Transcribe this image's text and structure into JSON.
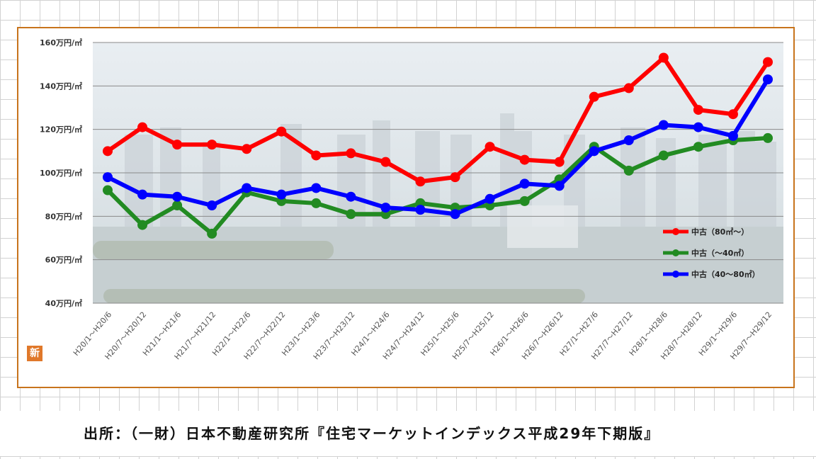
{
  "chart_data": {
    "type": "line",
    "ylim": [
      40,
      160
    ],
    "y_ticks": [
      "40万円/㎡",
      "60万円/㎡",
      "80万円/㎡",
      "100万円/㎡",
      "120万円/㎡",
      "140万円/㎡",
      "160万円/㎡"
    ],
    "categories": [
      "H20/1～H20/6",
      "H20/7～H20/12",
      "H21/1～H21/6",
      "H21/7～H21/12",
      "H22/1～H22/6",
      "H22/7～H22/12",
      "H23/1～H23/6",
      "H23/7～H23/12",
      "H24/1～H24/6",
      "H24/7～H24/12",
      "H25/1～H25/6",
      "H25/7～H25/12",
      "H26/1～H26/6",
      "H26/7～H26/12",
      "H27/1～H27/6",
      "H27/7～H27/12",
      "H28/1～H28/6",
      "H28/7～H28/12",
      "H29/1～H29/6",
      "H29/7～H29/12"
    ],
    "series": [
      {
        "name": "中古（80㎡～）",
        "color": "#ff0000",
        "values": [
          110,
          121,
          113,
          113,
          111,
          119,
          108,
          109,
          105,
          96,
          98,
          112,
          106,
          105,
          135,
          139,
          153,
          129,
          127,
          151
        ]
      },
      {
        "name": "中古（～40㎡）",
        "color": "#228b22",
        "values": [
          92,
          76,
          85,
          72,
          91,
          87,
          86,
          81,
          81,
          86,
          84,
          85,
          87,
          97,
          112,
          101,
          108,
          112,
          115,
          116
        ]
      },
      {
        "name": "中古（40～80㎡）",
        "color": "#0000ff",
        "values": [
          98,
          90,
          89,
          85,
          93,
          90,
          93,
          89,
          84,
          83,
          81,
          88,
          95,
          94,
          110,
          115,
          122,
          121,
          117,
          143
        ]
      }
    ],
    "grid": true,
    "legend_position": "right"
  },
  "badge": "新",
  "source": "出所：（一財）日本不動産研究所『住宅マーケットインデックス平成29年下期版』"
}
